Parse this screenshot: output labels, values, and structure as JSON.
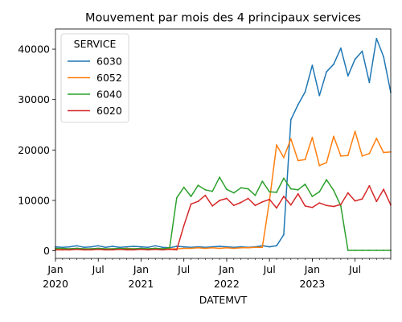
{
  "chart_data": {
    "type": "line",
    "title": "Mouvement par mois des 4 principaux services",
    "xlabel": "DATEMVT",
    "ylabel": "",
    "x_start": "2020-01",
    "x_end": "2023-12",
    "x_ticks_major": [
      {
        "label": "Jan",
        "sub": "2020",
        "date": "2020-01"
      },
      {
        "label": "Jul",
        "sub": "",
        "date": "2020-07"
      },
      {
        "label": "Jan",
        "sub": "2021",
        "date": "2021-01"
      },
      {
        "label": "Jul",
        "sub": "",
        "date": "2021-07"
      },
      {
        "label": "Jan",
        "sub": "2022",
        "date": "2022-01"
      },
      {
        "label": "Jul",
        "sub": "",
        "date": "2022-07"
      },
      {
        "label": "Jan",
        "sub": "2023",
        "date": "2023-01"
      },
      {
        "label": "Jul",
        "sub": "",
        "date": "2023-07"
      }
    ],
    "ylim": [
      -1500,
      44000
    ],
    "y_ticks": [
      0,
      10000,
      20000,
      30000,
      40000
    ],
    "legend_title": "SERVICE",
    "legend_position": "upper-left",
    "x": [
      "2020-01",
      "2020-02",
      "2020-03",
      "2020-04",
      "2020-05",
      "2020-06",
      "2020-07",
      "2020-08",
      "2020-09",
      "2020-10",
      "2020-11",
      "2020-12",
      "2021-01",
      "2021-02",
      "2021-03",
      "2021-04",
      "2021-05",
      "2021-06",
      "2021-07",
      "2021-08",
      "2021-09",
      "2021-10",
      "2021-11",
      "2021-12",
      "2022-01",
      "2022-02",
      "2022-03",
      "2022-04",
      "2022-05",
      "2022-06",
      "2022-07",
      "2022-08",
      "2022-09",
      "2022-10",
      "2022-11",
      "2022-12",
      "2023-01",
      "2023-02",
      "2023-03",
      "2023-04",
      "2023-05",
      "2023-06",
      "2023-07",
      "2023-08",
      "2023-09",
      "2023-10",
      "2023-11",
      "2023-12"
    ],
    "series": [
      {
        "name": "6030",
        "color": "#1f77b4",
        "values": [
          800,
          700,
          800,
          1000,
          700,
          800,
          1000,
          700,
          900,
          700,
          800,
          900,
          800,
          700,
          1000,
          700,
          600,
          900,
          800,
          700,
          800,
          700,
          800,
          900,
          800,
          700,
          800,
          700,
          800,
          1000,
          800,
          1000,
          3200,
          26000,
          29000,
          31500,
          36800,
          30800,
          35500,
          37000,
          40200,
          34700,
          38000,
          39600,
          33400,
          42100,
          38500,
          31400
        ]
      },
      {
        "name": "6052",
        "color": "#ff7f0e",
        "values": [
          400,
          400,
          400,
          500,
          400,
          400,
          500,
          400,
          400,
          400,
          500,
          400,
          400,
          400,
          500,
          400,
          400,
          400,
          500,
          500,
          600,
          500,
          600,
          500,
          600,
          500,
          600,
          600,
          700,
          700,
          10000,
          21000,
          18500,
          22200,
          17900,
          18100,
          22500,
          16900,
          17500,
          22700,
          18800,
          18900,
          23700,
          18800,
          19300,
          22300,
          19500,
          19600
        ]
      },
      {
        "name": "6040",
        "color": "#2ca02c",
        "values": [
          500,
          500,
          400,
          500,
          400,
          400,
          500,
          400,
          400,
          500,
          400,
          400,
          500,
          400,
          500,
          400,
          600,
          10500,
          12600,
          10800,
          13000,
          12100,
          11800,
          14600,
          12200,
          11500,
          12500,
          12300,
          11000,
          13800,
          11700,
          11600,
          14400,
          12300,
          12100,
          13200,
          10800,
          11700,
          14100,
          12000,
          8900,
          100,
          100,
          100,
          100,
          100,
          100,
          100
        ]
      },
      {
        "name": "6020",
        "color": "#d62728",
        "values": [
          200,
          200,
          200,
          300,
          200,
          200,
          300,
          200,
          200,
          300,
          200,
          200,
          300,
          200,
          300,
          200,
          300,
          200,
          5000,
          9300,
          9800,
          11000,
          8900,
          10000,
          10400,
          9000,
          9600,
          10400,
          9000,
          9700,
          10200,
          8500,
          10800,
          9100,
          11300,
          8900,
          8600,
          9500,
          9000,
          8800,
          9200,
          11500,
          9900,
          10300,
          12900,
          9800,
          12200,
          9100
        ]
      }
    ]
  }
}
